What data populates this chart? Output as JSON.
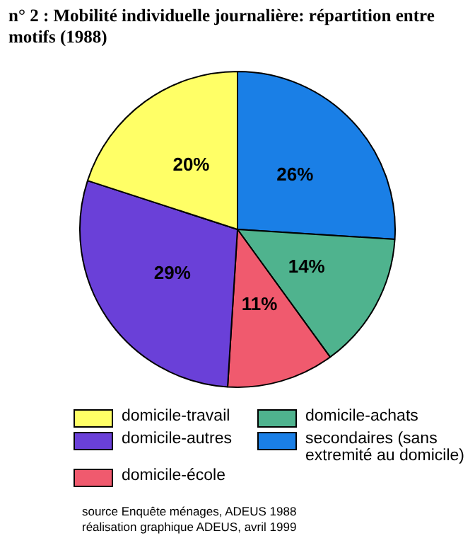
{
  "chart_data": {
    "type": "pie",
    "title": "n° 2 :   Mobilité individuelle journalière: répartition entre motifs (1988)",
    "categories": [
      "secondaires (sans extremité au domicile)",
      "domicile-achats",
      "domicile-école",
      "domicile-autres",
      "domicile-travail"
    ],
    "values": [
      26,
      14,
      11,
      29,
      20
    ],
    "value_labels": [
      "26%",
      "14%",
      "11%",
      "29%",
      "20%"
    ],
    "colors": [
      "#1a7fe6",
      "#4fb38e",
      "#f05a6e",
      "#6a40d8",
      "#ffff66"
    ],
    "legend": "bottom",
    "annotations": [
      "source Enquête ménages, ADEUS 1988",
      "réalisation graphique ADEUS, avril 1999"
    ]
  }
}
